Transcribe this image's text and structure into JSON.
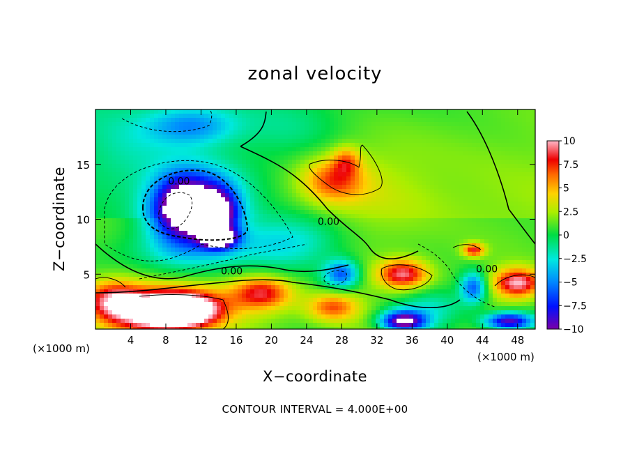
{
  "chart_data": {
    "type": "heatmap",
    "title": "zonal velocity",
    "xlabel": "X−coordinate",
    "ylabel": "Z−coordinate",
    "x_unit": "(×1000 m)",
    "z_unit": "(×1000 m)",
    "xlim": [
      0,
      50
    ],
    "ylim": [
      0,
      20
    ],
    "x_ticks": [
      4,
      8,
      12,
      16,
      20,
      24,
      28,
      32,
      36,
      40,
      44,
      48
    ],
    "y_ticks": [
      5,
      10,
      15
    ],
    "colorbar": {
      "range": [
        -10,
        10
      ],
      "ticks": [
        {
          "value": 10,
          "label": "10"
        },
        {
          "value": 7.5,
          "label": "7.5"
        },
        {
          "value": 5,
          "label": "5"
        },
        {
          "value": 2.5,
          "label": "2.5"
        },
        {
          "value": 0,
          "label": "0"
        },
        {
          "value": -2.5,
          "label": "−2.5"
        },
        {
          "value": -5,
          "label": "−5"
        },
        {
          "value": -7.5,
          "label": "−7.5"
        },
        {
          "value": -10,
          "label": "−10"
        }
      ]
    },
    "contour_interval_text": "CONTOUR INTERVAL = 4.000E+00",
    "contour_labels": [
      {
        "text": "0.00",
        "x": 9.5,
        "z": 13.5
      },
      {
        "text": "0.00",
        "x": 26.5,
        "z": 9.8
      },
      {
        "text": "0.00",
        "x": 15.5,
        "z": 5.3
      },
      {
        "text": "0.00",
        "x": 44.5,
        "z": 5.5
      }
    ],
    "features": [
      {
        "x": 10,
        "z": 11,
        "rx": 3.4,
        "rz": 2.9,
        "value": -11
      },
      {
        "x": 12,
        "z": 11.5,
        "rx": 5.5,
        "rz": 3.4,
        "value": -6
      },
      {
        "x": 14,
        "z": 10.5,
        "rx": 2.2,
        "rz": 2.2,
        "value": -9
      },
      {
        "x": 14,
        "z": 8.3,
        "rx": 2.0,
        "rz": 0.9,
        "value": -11
      },
      {
        "x": 10,
        "z": 7.0,
        "rx": 8.0,
        "rz": 2.2,
        "value": -3
      },
      {
        "x": 22,
        "z": 8.0,
        "rx": 6.0,
        "rz": 2.5,
        "value": -4
      },
      {
        "x": 28,
        "z": 5.0,
        "rx": 2.0,
        "rz": 1.3,
        "value": -7
      },
      {
        "x": 10,
        "z": 1.8,
        "rx": 4.5,
        "rz": 1.6,
        "value": 11
      },
      {
        "x": 7.5,
        "z": 1.5,
        "rx": 6.0,
        "rz": 2.3,
        "value": 8
      },
      {
        "x": 2,
        "z": 2.6,
        "rx": 3.5,
        "rz": 1.8,
        "value": 7
      },
      {
        "x": 19,
        "z": 3.3,
        "rx": 3.5,
        "rz": 1.5,
        "value": 7
      },
      {
        "x": 27,
        "z": 2.0,
        "rx": 3.0,
        "rz": 1.3,
        "value": 6
      },
      {
        "x": 35,
        "z": 5.0,
        "rx": 2.8,
        "rz": 1.3,
        "value": 8
      },
      {
        "x": 48,
        "z": 4.2,
        "rx": 2.8,
        "rz": 1.3,
        "value": 9
      },
      {
        "x": 43,
        "z": 7.2,
        "rx": 1.2,
        "rz": 0.6,
        "value": 7
      },
      {
        "x": 35,
        "z": 0.7,
        "rx": 2.5,
        "rz": 0.9,
        "value": -12
      },
      {
        "x": 47,
        "z": 0.7,
        "rx": 2.8,
        "rz": 0.8,
        "value": -11
      },
      {
        "x": 43,
        "z": 3.8,
        "rx": 1.5,
        "rz": 1.4,
        "value": -7
      },
      {
        "x": 38,
        "z": 2.0,
        "rx": 4.5,
        "rz": 1.6,
        "value": -3
      },
      {
        "x": 27,
        "z": 13.5,
        "rx": 3.5,
        "rz": 2.0,
        "value": 5
      },
      {
        "x": 28.5,
        "z": 15.3,
        "rx": 1.6,
        "rz": 1.3,
        "value": 4
      },
      {
        "x": 31,
        "z": 13.0,
        "rx": 8.0,
        "rz": 5.0,
        "value": 1.5
      },
      {
        "x": 11,
        "z": 18.5,
        "rx": 5.0,
        "rz": 1.7,
        "value": -5
      },
      {
        "x": 4,
        "z": 16.0,
        "rx": 5.0,
        "rz": 3.5,
        "value": -1.5
      },
      {
        "x": 22,
        "z": 18.0,
        "rx": 6.0,
        "rz": 3.0,
        "value": -1.5
      }
    ]
  }
}
